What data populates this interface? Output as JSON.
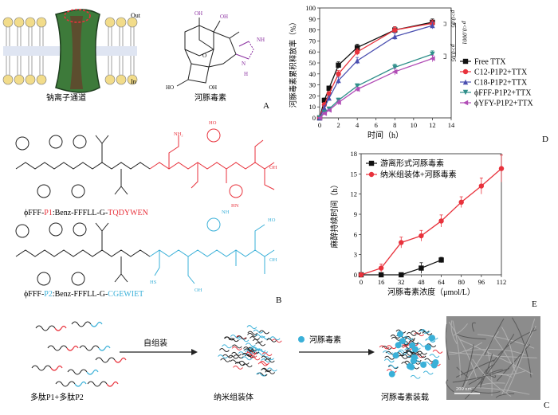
{
  "panelA": {
    "letter": "A",
    "out_label": "Out",
    "in_label": "In",
    "channel_caption": "钠离子通道",
    "toxin_caption": "河豚毒素",
    "atom_oh": "OH",
    "atom_ho": "HO",
    "atom_nh": "NH",
    "atom_n": "N",
    "atom_h": "H",
    "atom_o": "O",
    "atom_oh_minus": "O⁻"
  },
  "panelB": {
    "letter": "B",
    "p1_prefix": "ϕFFF-",
    "p1_name": "P1",
    "p1_mid": ":Benz-FFFLL-G-",
    "p1_seq": "TQDYWEN",
    "p2_prefix": "ϕFFF-",
    "p2_name": "P2",
    "p2_mid": ":Benz-FFFLL-G-",
    "p2_seq": "CGEWIET",
    "red": "#e8323c",
    "cyan": "#3ab0d8"
  },
  "panelC": {
    "letter": "C",
    "step1": "自组装",
    "toxin_legend": "河豚毒素",
    "label_left": "多肽P1+多肽P2",
    "label_mid": "纳米组装体",
    "label_right": "河豚毒素装载",
    "scale": "200 nm"
  },
  "panelD": {
    "letter": "D",
    "sig1": "p>0.05",
    "sig2": "p>0.05",
    "sig3": "p<0.0001"
  },
  "panelE": {
    "letter": "E"
  },
  "chart_data": [
    {
      "type": "line",
      "xlabel": "时间（h）",
      "ylabel": "河豚毒素累积释放率（%）",
      "xlim": [
        0,
        14
      ],
      "ylim": [
        0,
        100
      ],
      "xticks": [
        0,
        2,
        4,
        6,
        8,
        10,
        12,
        14
      ],
      "yticks": [
        0,
        10,
        20,
        30,
        40,
        50,
        60,
        70,
        80,
        90,
        100
      ],
      "legend_position": "right",
      "x": [
        0,
        0.5,
        1,
        2,
        4,
        8,
        12
      ],
      "series": [
        {
          "name": "Free TTX",
          "color": "#111111",
          "marker": "square",
          "values": [
            0,
            16,
            27,
            48,
            64,
            80,
            87
          ],
          "err": [
            0,
            2,
            2,
            3,
            3,
            3,
            3
          ]
        },
        {
          "name": "C12-P1P2+TTX",
          "color": "#e8323c",
          "marker": "circle",
          "values": [
            0,
            12,
            22,
            40,
            60,
            80,
            86
          ],
          "err": [
            0,
            2,
            2,
            3,
            3,
            3,
            3
          ]
        },
        {
          "name": "C18-P1P2+TTX",
          "color": "#4a4fb0",
          "marker": "triangle",
          "values": [
            0,
            9,
            18,
            34,
            52,
            74,
            84
          ],
          "err": [
            0,
            2,
            2,
            3,
            3,
            3,
            3
          ]
        },
        {
          "name": "ϕFFF-P1P2+TTX",
          "color": "#2f8f8a",
          "marker": "triangle-down",
          "values": [
            0,
            5,
            8,
            16,
            29,
            46,
            58
          ],
          "err": [
            0,
            1,
            1,
            2,
            2,
            3,
            3
          ]
        },
        {
          "name": "ϕYFY-P1P2+TTX",
          "color": "#b14db6",
          "marker": "triangle-left",
          "values": [
            0,
            4,
            7,
            14,
            26,
            42,
            54
          ],
          "err": [
            0,
            1,
            1,
            2,
            2,
            3,
            3
          ]
        }
      ]
    },
    {
      "type": "line",
      "xlabel": "河豚毒素浓度（μmol/L）",
      "ylabel": "麻醉持续时间（h）",
      "xlim": [
        0,
        112
      ],
      "ylim": [
        0,
        18
      ],
      "xticks": [
        0,
        16,
        32,
        48,
        64,
        80,
        96,
        112
      ],
      "yticks": [
        0,
        3,
        6,
        9,
        12,
        15,
        18
      ],
      "legend_position": "top-left",
      "series": [
        {
          "name": "游离形式河豚毒素",
          "color": "#111111",
          "marker": "square",
          "x": [
            0,
            16,
            32,
            48,
            64
          ],
          "values": [
            0,
            0,
            0,
            1,
            2.2
          ],
          "err": [
            0,
            0,
            0,
            0.8,
            0.4
          ]
        },
        {
          "name": "纳米组装体+河豚毒素",
          "color": "#e8323c",
          "marker": "circle",
          "x": [
            0,
            16,
            32,
            48,
            64,
            80,
            96,
            112
          ],
          "values": [
            0,
            1,
            4.8,
            5.8,
            8,
            10.8,
            13.2,
            15.8
          ],
          "err": [
            0,
            0.6,
            0.8,
            0.8,
            0.9,
            0.8,
            1.2,
            2
          ]
        }
      ]
    }
  ]
}
